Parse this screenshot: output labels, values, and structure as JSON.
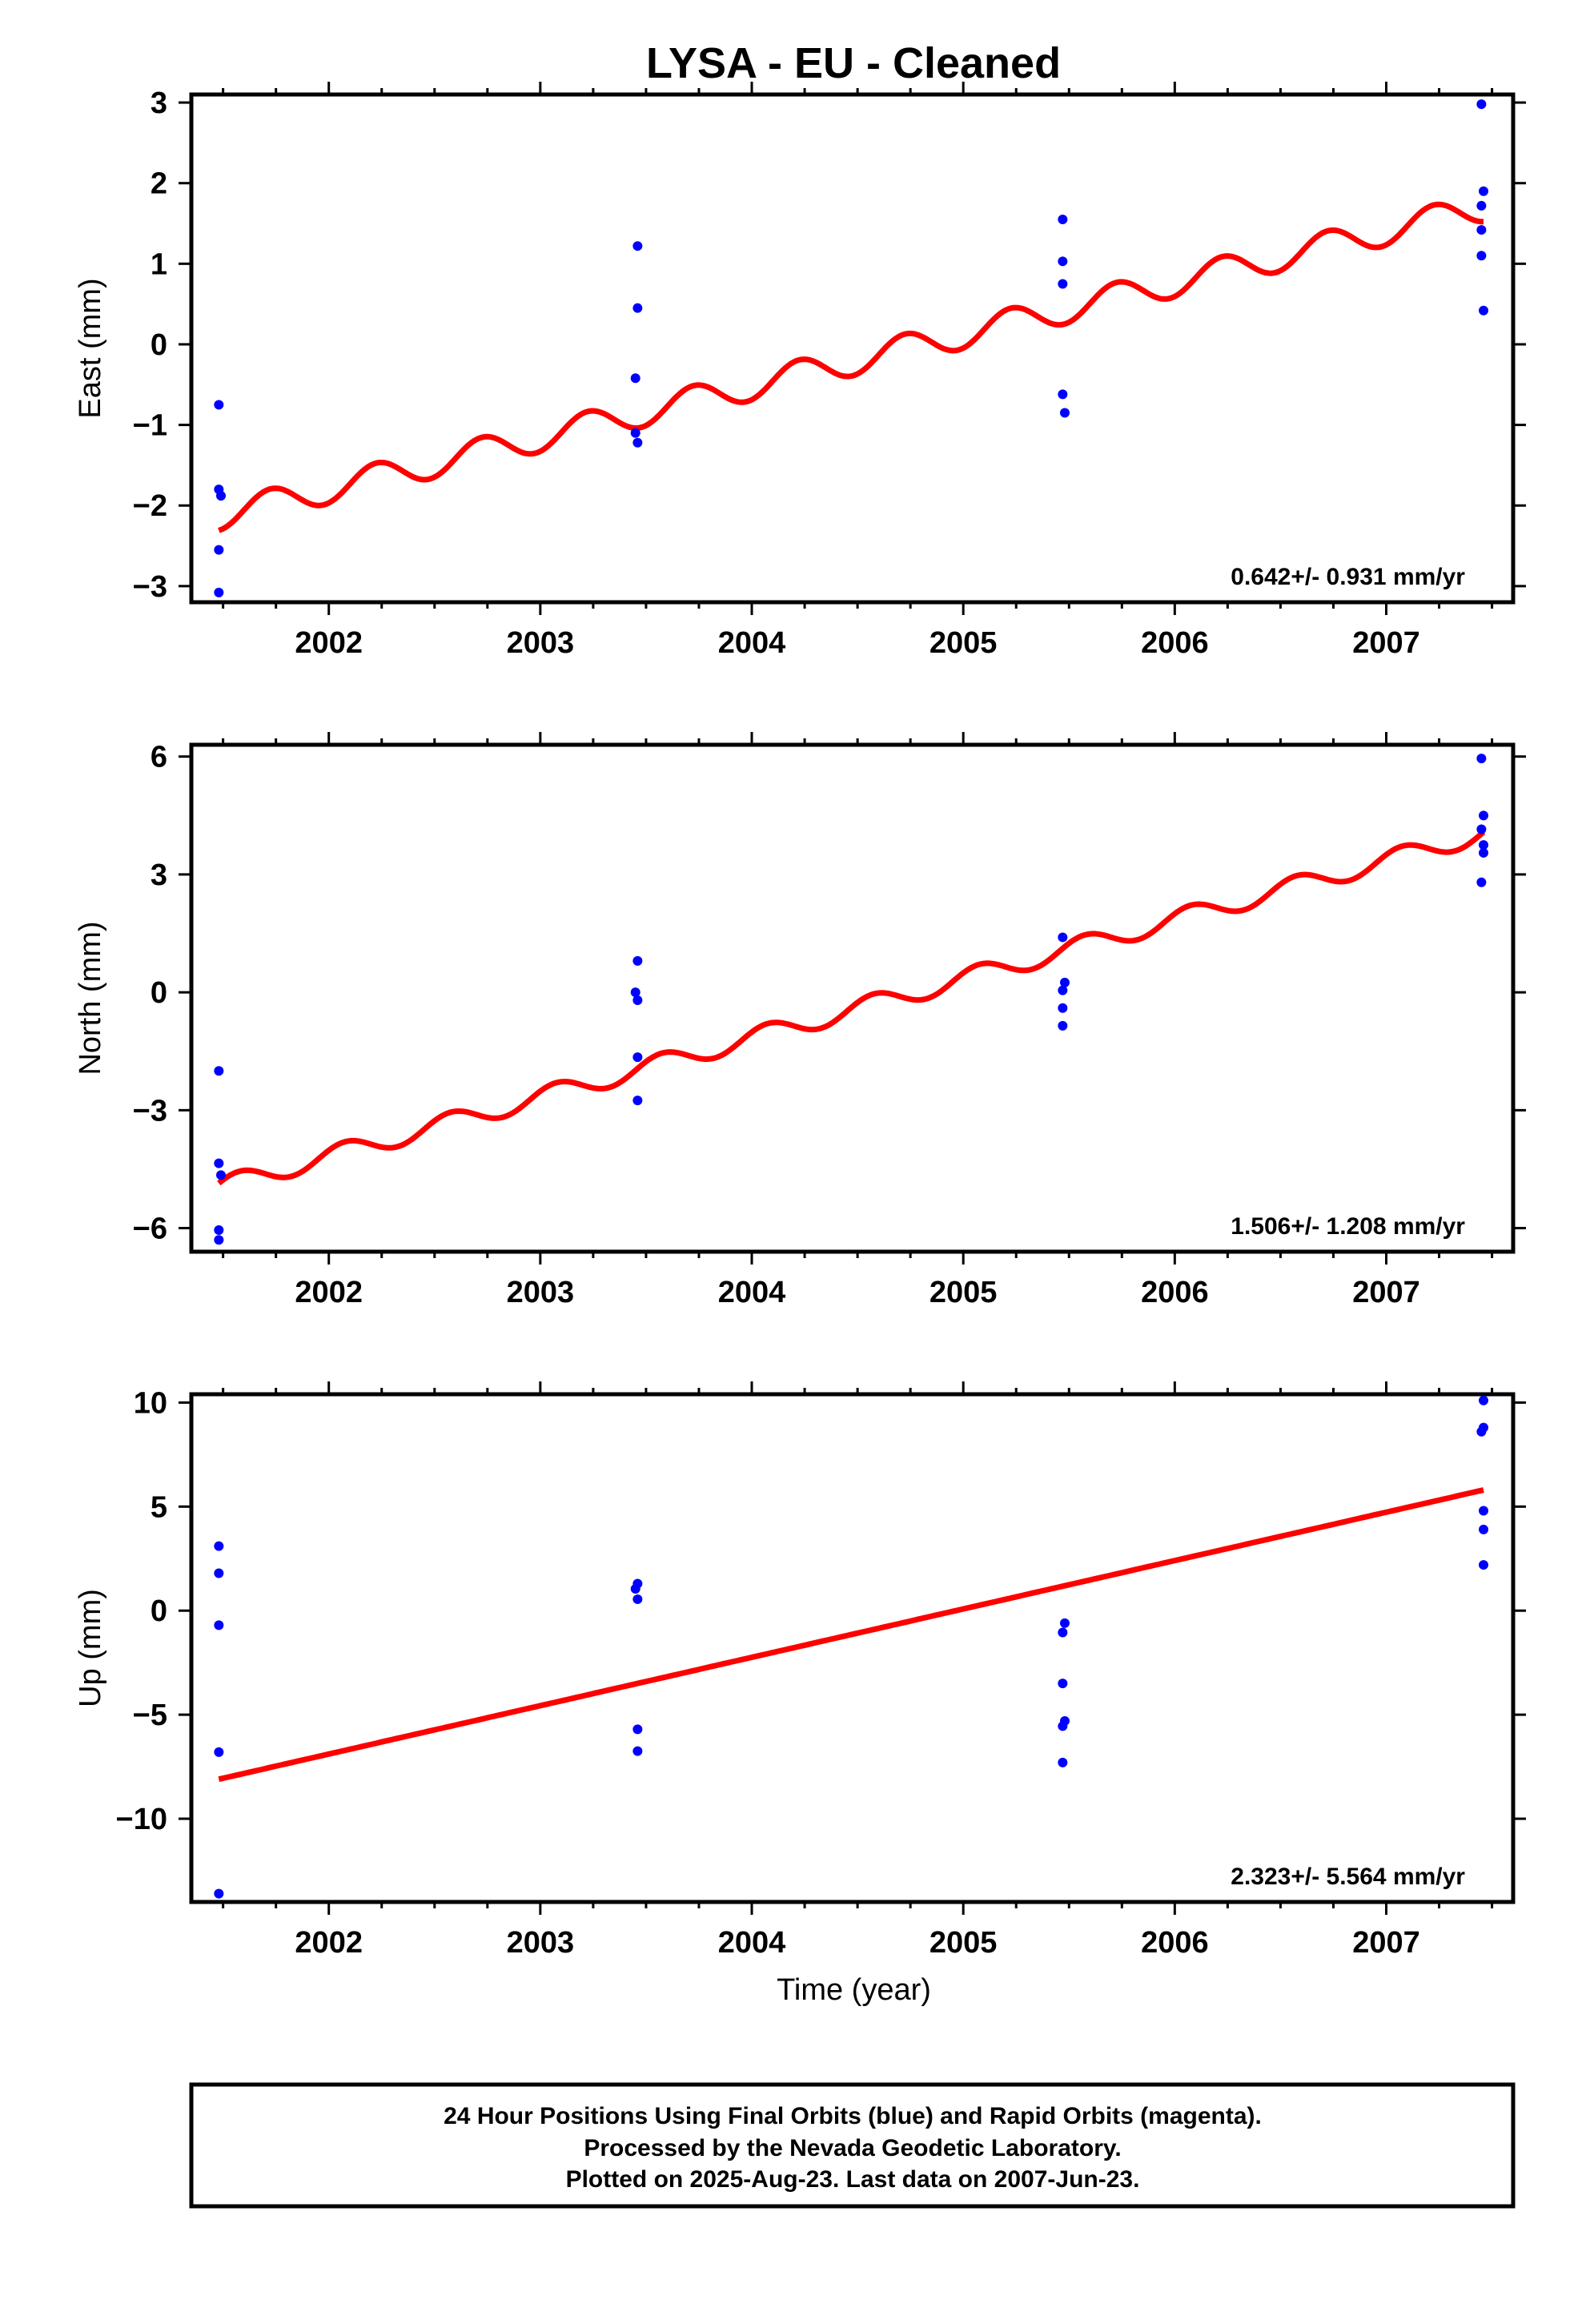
{
  "title": "LYSA  - EU - Cleaned",
  "colors": {
    "data_points": "#0000ff",
    "model_line": "#ff0000",
    "frame": "#000000"
  },
  "chart_data": [
    {
      "type": "scatter",
      "ylabel": "East (mm)",
      "xlabel": "",
      "xlim": [
        2001.35,
        2007.6
      ],
      "ylim": [
        -3.2,
        3.1
      ],
      "xticks": [
        "2002",
        "2003",
        "2004",
        "2005",
        "2006",
        "2007"
      ],
      "xtick_values": [
        2002,
        2003,
        2004,
        2005,
        2006,
        2007
      ],
      "yticks": [
        "3",
        "2",
        "1",
        "0",
        "−1",
        "−2",
        "−3"
      ],
      "ytick_values": [
        3,
        2,
        1,
        0,
        -1,
        -2,
        -3
      ],
      "rate_text": "0.642+/- 0.931 mm/yr",
      "series": [
        {
          "x": [
            2001.48,
            2001.48,
            2001.49,
            2001.48,
            2001.48,
            2003.46,
            2003.46,
            2003.45,
            2003.45,
            2003.46,
            2005.47,
            2005.47,
            2005.47,
            2005.47,
            2005.48,
            2007.45,
            2007.46,
            2007.45,
            2007.45,
            2007.45,
            2007.46
          ],
          "y": [
            -0.75,
            -1.8,
            -1.88,
            -2.55,
            -3.08,
            1.22,
            0.45,
            -0.42,
            -1.1,
            -1.22,
            1.55,
            1.03,
            0.75,
            -0.62,
            -0.85,
            2.98,
            1.9,
            1.72,
            1.42,
            1.1,
            0.42
          ]
        }
      ],
      "model": {
        "start": [
          2001.48,
          -2.13
        ],
        "end": [
          2007.46,
          1.7
        ],
        "amplitude": 0.18,
        "period": 0.5,
        "phase": 2001.6
      }
    },
    {
      "type": "scatter",
      "ylabel": "North (mm)",
      "xlabel": "",
      "xlim": [
        2001.35,
        2007.6
      ],
      "ylim": [
        -6.6,
        6.3
      ],
      "xticks": [
        "2002",
        "2003",
        "2004",
        "2005",
        "2006",
        "2007"
      ],
      "xtick_values": [
        2002,
        2003,
        2004,
        2005,
        2006,
        2007
      ],
      "yticks": [
        "6",
        "3",
        "0",
        "−3",
        "−6"
      ],
      "ytick_values": [
        6,
        3,
        0,
        -3,
        -6
      ],
      "rate_text": "1.506+/- 1.208 mm/yr",
      "series": [
        {
          "x": [
            2001.48,
            2001.48,
            2001.49,
            2001.48,
            2001.48,
            2003.46,
            2003.45,
            2003.46,
            2003.46,
            2003.46,
            2005.47,
            2005.48,
            2005.47,
            2005.47,
            2005.47,
            2007.45,
            2007.46,
            2007.45,
            2007.46,
            2007.46,
            2007.45
          ],
          "y": [
            -2.0,
            -4.35,
            -4.65,
            -6.05,
            -6.3,
            0.8,
            0.0,
            -0.2,
            -1.65,
            -2.75,
            1.4,
            0.25,
            0.05,
            -0.4,
            -0.85,
            5.95,
            4.5,
            4.15,
            3.75,
            3.55,
            2.8
          ]
        }
      ],
      "model": {
        "start": [
          2001.48,
          -4.95
        ],
        "end": [
          2007.46,
          4.05
        ],
        "amplitude": 0.25,
        "period": 0.5,
        "phase": 2001.45
      }
    },
    {
      "type": "scatter",
      "ylabel": "Up (mm)",
      "xlabel": "Time (year)",
      "xlim": [
        2001.35,
        2007.6
      ],
      "ylim": [
        -14,
        10.4
      ],
      "xticks": [
        "2002",
        "2003",
        "2004",
        "2005",
        "2006",
        "2007"
      ],
      "xtick_values": [
        2002,
        2003,
        2004,
        2005,
        2006,
        2007
      ],
      "yticks": [
        "10",
        "5",
        "0",
        "−5",
        "−10"
      ],
      "ytick_values": [
        10,
        5,
        0,
        -5,
        -10
      ],
      "rate_text": "2.323+/- 5.564 mm/yr",
      "series": [
        {
          "x": [
            2001.48,
            2001.48,
            2001.48,
            2001.48,
            2001.48,
            2003.46,
            2003.45,
            2003.46,
            2003.46,
            2003.46,
            2005.48,
            2005.47,
            2005.47,
            2005.48,
            2005.47,
            2005.47,
            2007.46,
            2007.46,
            2007.45,
            2007.46,
            2007.46,
            2007.46
          ],
          "y": [
            3.1,
            1.8,
            -0.7,
            -6.8,
            -13.6,
            1.3,
            1.05,
            0.55,
            -5.7,
            -6.75,
            -0.6,
            -1.05,
            -3.5,
            -5.3,
            -5.55,
            -7.3,
            10.1,
            8.8,
            8.6,
            4.8,
            3.9,
            2.2
          ]
        }
      ],
      "model": {
        "start": [
          2001.48,
          -8.1
        ],
        "end": [
          2007.46,
          5.8
        ],
        "amplitude": 0.0,
        "period": 0.5,
        "phase": 2001.5
      }
    }
  ],
  "footer": {
    "line1": "24 Hour Positions Using Final Orbits (blue) and Rapid Orbits (magenta).",
    "line2": "Processed by the Nevada Geodetic Laboratory.",
    "line3": "Plotted on 2025-Aug-23. Last data on 2007-Jun-23."
  }
}
